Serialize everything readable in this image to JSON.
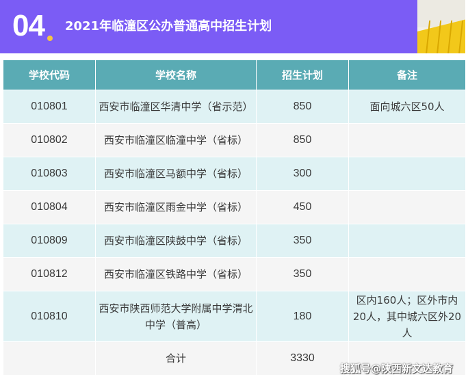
{
  "banner": {
    "number": "04",
    "title": "2021年临潼区公办普通高中招生计划"
  },
  "table": {
    "headers": [
      "学校代码",
      "学校名称",
      "招生计划",
      "备注"
    ],
    "rows": [
      {
        "code": "010801",
        "name": "西安市临潼区华清中学（省示范）",
        "plan": "850",
        "note": "面向城六区50人"
      },
      {
        "code": "010802",
        "name": "西安市临潼区临潼中学（省标）",
        "plan": "850",
        "note": ""
      },
      {
        "code": "010803",
        "name": "西安市临潼区马额中学（省标）",
        "plan": "300",
        "note": ""
      },
      {
        "code": "010804",
        "name": "西安市临潼区雨金中学（省标）",
        "plan": "450",
        "note": ""
      },
      {
        "code": "010809",
        "name": "西安市临潼区陕鼓中学（省标）",
        "plan": "350",
        "note": ""
      },
      {
        "code": "010812",
        "name": "西安市临潼区铁路中学（省标）",
        "plan": "350",
        "note": ""
      },
      {
        "code": "010810",
        "name": "西安市陕西师范大学附属中学渭北中学（普高）",
        "plan": "180",
        "note": "区内160人；区外市内20人，其中城六区外20人"
      }
    ],
    "total": {
      "code": "",
      "name": "合计",
      "plan": "3330",
      "note": ""
    }
  },
  "watermark": "搜狐号@陕西新文达教育"
}
